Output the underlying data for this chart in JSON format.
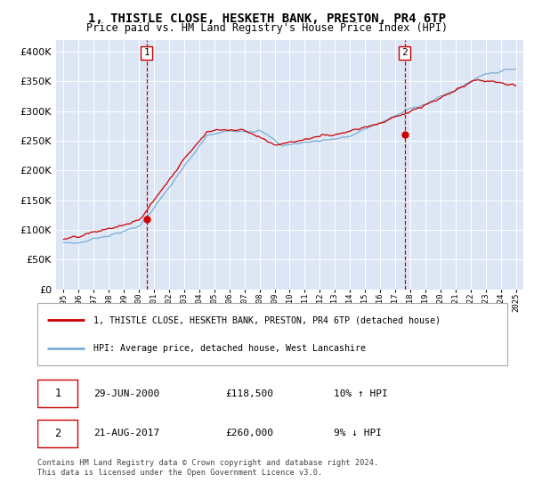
{
  "title": "1, THISTLE CLOSE, HESKETH BANK, PRESTON, PR4 6TP",
  "subtitle": "Price paid vs. HM Land Registry's House Price Index (HPI)",
  "legend_line1": "1, THISTLE CLOSE, HESKETH BANK, PRESTON, PR4 6TP (detached house)",
  "legend_line2": "HPI: Average price, detached house, West Lancashire",
  "transaction1_date": "29-JUN-2000",
  "transaction1_price": "£118,500",
  "transaction1_hpi": "10% ↑ HPI",
  "transaction2_date": "21-AUG-2017",
  "transaction2_price": "£260,000",
  "transaction2_hpi": "9% ↓ HPI",
  "footer": "Contains HM Land Registry data © Crown copyright and database right 2024.\nThis data is licensed under the Open Government Licence v3.0.",
  "hpi_color": "#7aadd4",
  "price_color": "#cc0000",
  "vline_color": "#cc0000",
  "marker_color": "#cc0000",
  "background_color": "#dce6f5",
  "ylim": [
    0,
    420000
  ],
  "yticks": [
    0,
    50000,
    100000,
    150000,
    200000,
    250000,
    300000,
    350000,
    400000
  ],
  "transaction1_x": 2000.5,
  "transaction2_x": 2017.62
}
